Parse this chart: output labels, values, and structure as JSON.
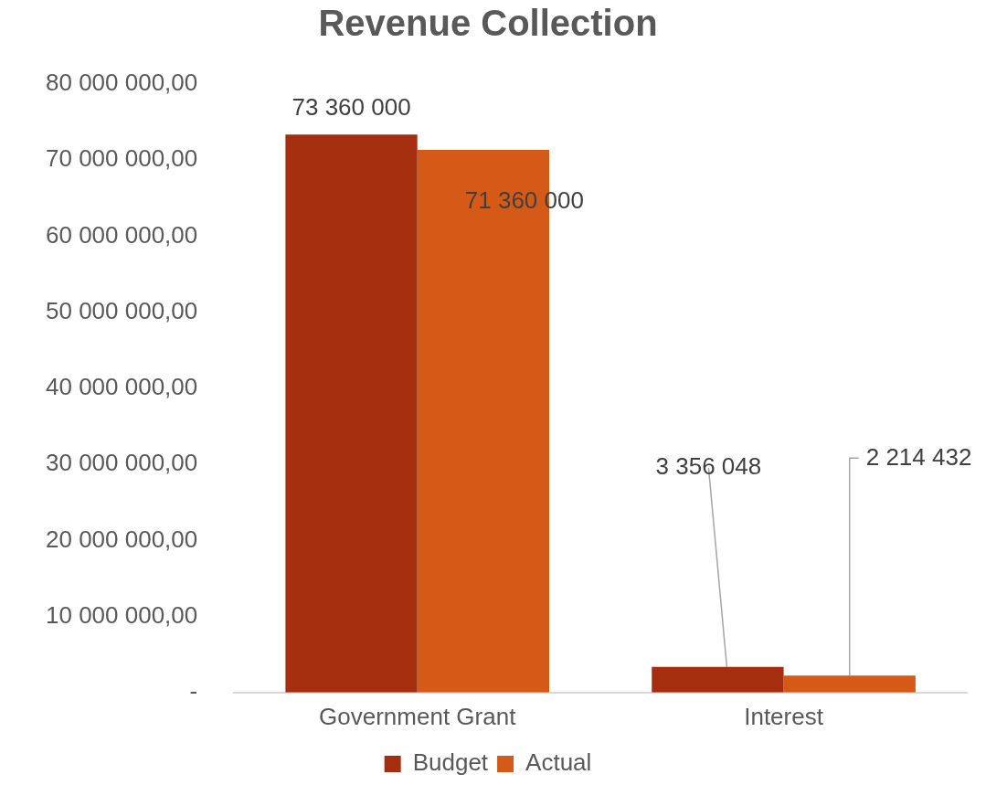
{
  "chart_data": {
    "type": "bar",
    "title": "Revenue Collection",
    "categories": [
      "Government Grant",
      "Interest"
    ],
    "series": [
      {
        "name": "Budget",
        "color": "#a52e0f",
        "values": [
          73360000,
          3356048
        ],
        "value_labels": [
          "73 360 000",
          "3 356 048"
        ]
      },
      {
        "name": "Actual",
        "color": "#d55a17",
        "values": [
          71360000,
          2214432
        ],
        "value_labels": [
          "71 360 000",
          "2 214 432"
        ]
      }
    ],
    "ylim": [
      0,
      80000000
    ],
    "yticks": [
      {
        "value": 0,
        "label": "-"
      },
      {
        "value": 10000000,
        "label": "10 000 000,00"
      },
      {
        "value": 20000000,
        "label": "20 000 000,00"
      },
      {
        "value": 30000000,
        "label": "30 000 000,00"
      },
      {
        "value": 40000000,
        "label": "40 000 000,00"
      },
      {
        "value": 50000000,
        "label": "50 000 000,00"
      },
      {
        "value": 60000000,
        "label": "60 000 000,00"
      },
      {
        "value": 70000000,
        "label": "70 000 000,00"
      },
      {
        "value": 80000000,
        "label": "80 000 000,00"
      }
    ],
    "grid": false,
    "legend": "bottom"
  }
}
